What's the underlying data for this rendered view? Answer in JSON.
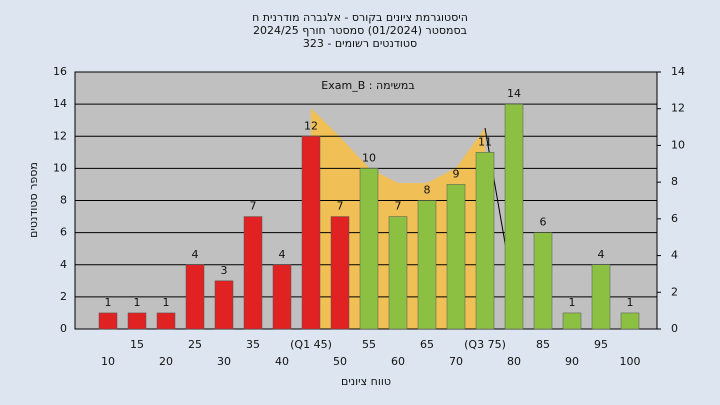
{
  "chart_data": {
    "type": "bar",
    "title": [
      "היסטוגרמת ציונים בקורס - אלגברה מודרנית ח",
      "בסמסטר (01/2024) סמסטר חורף 2024/25",
      "סטודנטים רשומים - 323"
    ],
    "annotation": "במשימה : Exam_B",
    "xlabel": "טווח ציונים",
    "ylabel": "מספר סטודנטים",
    "categories": [
      "10",
      "15",
      "20",
      "25",
      "30",
      "35",
      "40",
      "(Q1 45)",
      "50",
      "55",
      "60",
      "65",
      "70",
      "(Q3 75)",
      "80",
      "85",
      "90",
      "95",
      "100"
    ],
    "values": [
      1,
      1,
      1,
      4,
      3,
      7,
      4,
      12,
      7,
      10,
      7,
      8,
      9,
      11,
      14,
      6,
      1,
      4,
      1
    ],
    "colors": [
      "#e02222",
      "#e02222",
      "#e02222",
      "#e02222",
      "#e02222",
      "#e02222",
      "#e02222",
      "#e02222",
      "#e02222",
      "#8cc043",
      "#8cc043",
      "#8cc043",
      "#8cc043",
      "#8cc043",
      "#8cc043",
      "#8cc043",
      "#8cc043",
      "#8cc043",
      "#8cc043"
    ],
    "ylim": [
      0,
      16
    ],
    "yticks": [
      0,
      2,
      4,
      6,
      8,
      10,
      12,
      14,
      16
    ],
    "y2lim": [
      0,
      14
    ],
    "y2ticks": [
      0,
      2,
      4,
      6,
      8,
      10,
      12,
      14
    ],
    "grid": true
  }
}
